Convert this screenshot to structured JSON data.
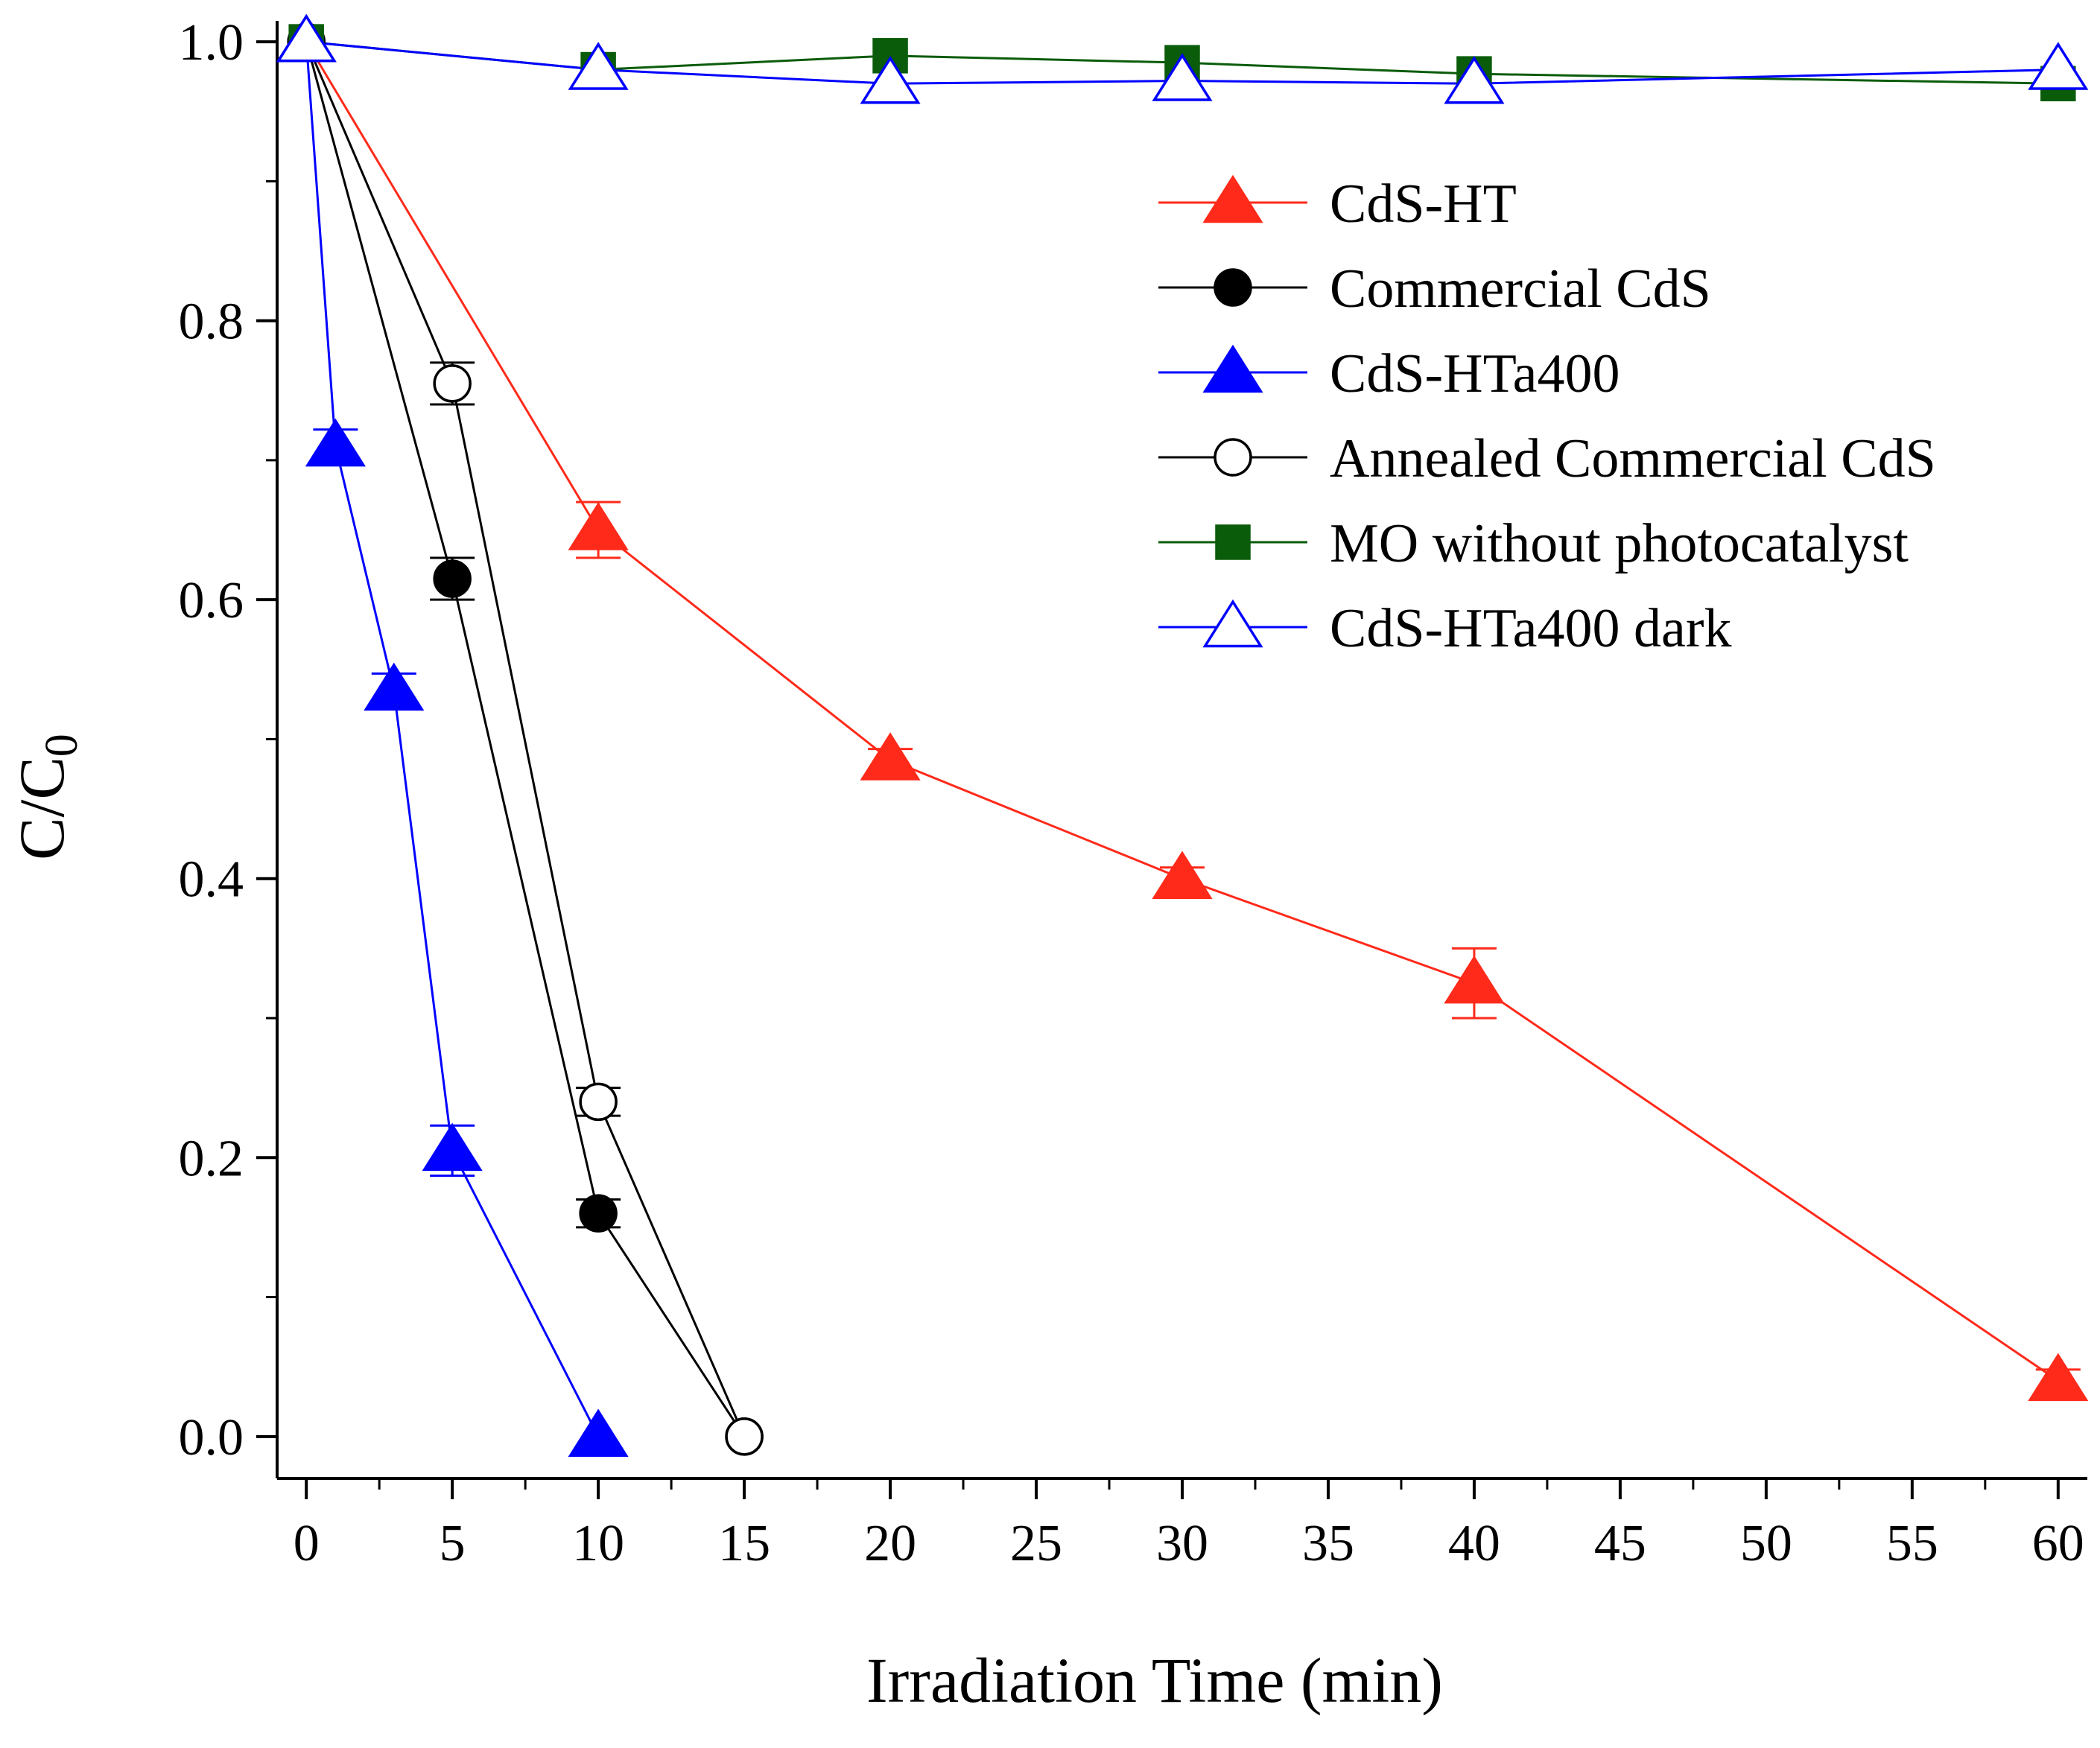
{
  "chart_data": {
    "type": "line",
    "title": "",
    "xlabel": "Irradiation Time (min)",
    "ylabel_main": "C/C",
    "ylabel_sub": "0",
    "xlim": [
      -1,
      61
    ],
    "ylim": [
      -0.03,
      1.015
    ],
    "x_ticks": [
      0,
      5,
      10,
      15,
      20,
      25,
      30,
      35,
      40,
      45,
      50,
      55,
      60
    ],
    "x_tick_labels": [
      "0",
      "5",
      "10",
      "15",
      "20",
      "25",
      "30",
      "35",
      "40",
      "45",
      "50",
      "55",
      "60"
    ],
    "y_ticks": [
      0.0,
      0.2,
      0.4,
      0.6,
      0.8,
      1.0
    ],
    "y_tick_labels": [
      "0.0",
      "0.2",
      "0.4",
      "0.6",
      "0.8",
      "1.0"
    ],
    "legend_position": "top-right",
    "series": [
      {
        "name": "CdS-HT",
        "color": "#ff2a1a",
        "marker": "triangle-filled",
        "x": [
          0,
          10,
          20,
          30,
          40,
          60
        ],
        "y": [
          1.0,
          0.65,
          0.485,
          0.4,
          0.325,
          0.04
        ],
        "err": [
          0,
          0.02,
          0.008,
          0.008,
          0.025,
          0.008
        ]
      },
      {
        "name": "Commercial CdS",
        "color": "#000000",
        "marker": "circle-filled",
        "x": [
          0,
          5,
          10,
          15
        ],
        "y": [
          1.0,
          0.615,
          0.16,
          0.0
        ],
        "err": [
          0,
          0.015,
          0.01,
          0
        ]
      },
      {
        "name": "CdS-HTa400",
        "color": "#0000ff",
        "marker": "triangle-filled",
        "x": [
          0,
          1,
          3,
          5,
          10
        ],
        "y": [
          1.0,
          0.71,
          0.535,
          0.205,
          0.0
        ],
        "err": [
          0,
          0.012,
          0.012,
          0.018,
          0
        ]
      },
      {
        "name": "Annealed Commercial CdS",
        "color": "#000000",
        "marker": "circle-open",
        "x": [
          0,
          5,
          10,
          15
        ],
        "y": [
          1.0,
          0.755,
          0.24,
          0.0
        ],
        "err": [
          0,
          0.015,
          0.01,
          0
        ]
      },
      {
        "name": "MO without photocatalyst",
        "color": "#0a5c0a",
        "marker": "square-filled",
        "x": [
          0,
          10,
          20,
          30,
          40,
          60
        ],
        "y": [
          1.0,
          0.98,
          0.99,
          0.985,
          0.977,
          0.97
        ],
        "err": [
          0,
          0,
          0,
          0,
          0,
          0
        ]
      },
      {
        "name": "CdS-HTa400 dark",
        "color": "#0000ff",
        "marker": "triangle-open",
        "x": [
          0,
          10,
          20,
          30,
          40,
          60
        ],
        "y": [
          1.0,
          0.98,
          0.97,
          0.972,
          0.97,
          0.98
        ],
        "err": [
          0,
          0,
          0,
          0,
          0,
          0
        ]
      }
    ]
  }
}
